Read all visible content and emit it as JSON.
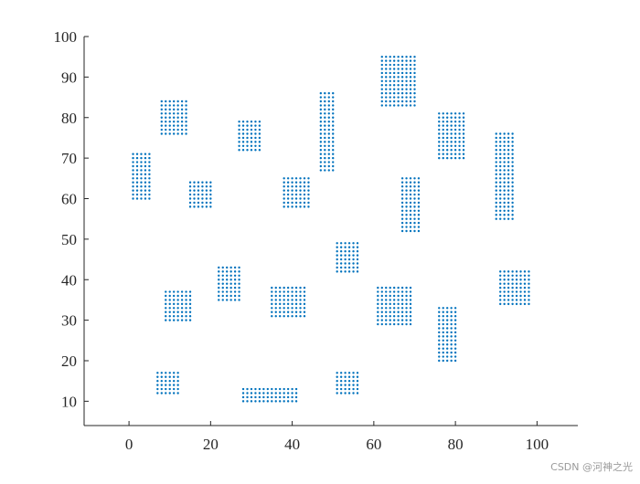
{
  "chart_data": {
    "type": "scatter",
    "title": "",
    "xlabel": "",
    "ylabel": "",
    "xlim": [
      -11,
      110
    ],
    "ylim": [
      4,
      100
    ],
    "x_ticks": [
      0,
      20,
      40,
      60,
      80,
      100
    ],
    "y_ticks": [
      10,
      20,
      30,
      40,
      50,
      60,
      70,
      80,
      90,
      100
    ],
    "grid": false,
    "legend": "none",
    "marker_color": "#0072BD",
    "point_spacing": 1,
    "regions": [
      {
        "x": [
          1,
          5
        ],
        "y": [
          60,
          71
        ]
      },
      {
        "x": [
          8,
          14
        ],
        "y": [
          76,
          84
        ]
      },
      {
        "x": [
          15,
          20
        ],
        "y": [
          58,
          64
        ]
      },
      {
        "x": [
          27,
          32
        ],
        "y": [
          72,
          79
        ]
      },
      {
        "x": [
          38,
          44
        ],
        "y": [
          58,
          65
        ]
      },
      {
        "x": [
          47,
          50
        ],
        "y": [
          67,
          86
        ]
      },
      {
        "x": [
          62,
          70
        ],
        "y": [
          83,
          95
        ]
      },
      {
        "x": [
          67,
          71
        ],
        "y": [
          52,
          65
        ]
      },
      {
        "x": [
          76,
          82
        ],
        "y": [
          70,
          81
        ]
      },
      {
        "x": [
          90,
          94
        ],
        "y": [
          55,
          76
        ]
      },
      {
        "x": [
          51,
          56
        ],
        "y": [
          42,
          49
        ]
      },
      {
        "x": [
          22,
          27
        ],
        "y": [
          35,
          43
        ]
      },
      {
        "x": [
          9,
          15
        ],
        "y": [
          30,
          37
        ]
      },
      {
        "x": [
          35,
          43
        ],
        "y": [
          31,
          38
        ]
      },
      {
        "x": [
          61,
          69
        ],
        "y": [
          29,
          38
        ]
      },
      {
        "x": [
          76,
          80
        ],
        "y": [
          20,
          33
        ]
      },
      {
        "x": [
          91,
          98
        ],
        "y": [
          34,
          42
        ]
      },
      {
        "x": [
          7,
          12
        ],
        "y": [
          12,
          17
        ]
      },
      {
        "x": [
          28,
          41
        ],
        "y": [
          10,
          13
        ]
      },
      {
        "x": [
          51,
          56
        ],
        "y": [
          12,
          17
        ]
      }
    ]
  },
  "watermark": "CSDN @河神之光"
}
